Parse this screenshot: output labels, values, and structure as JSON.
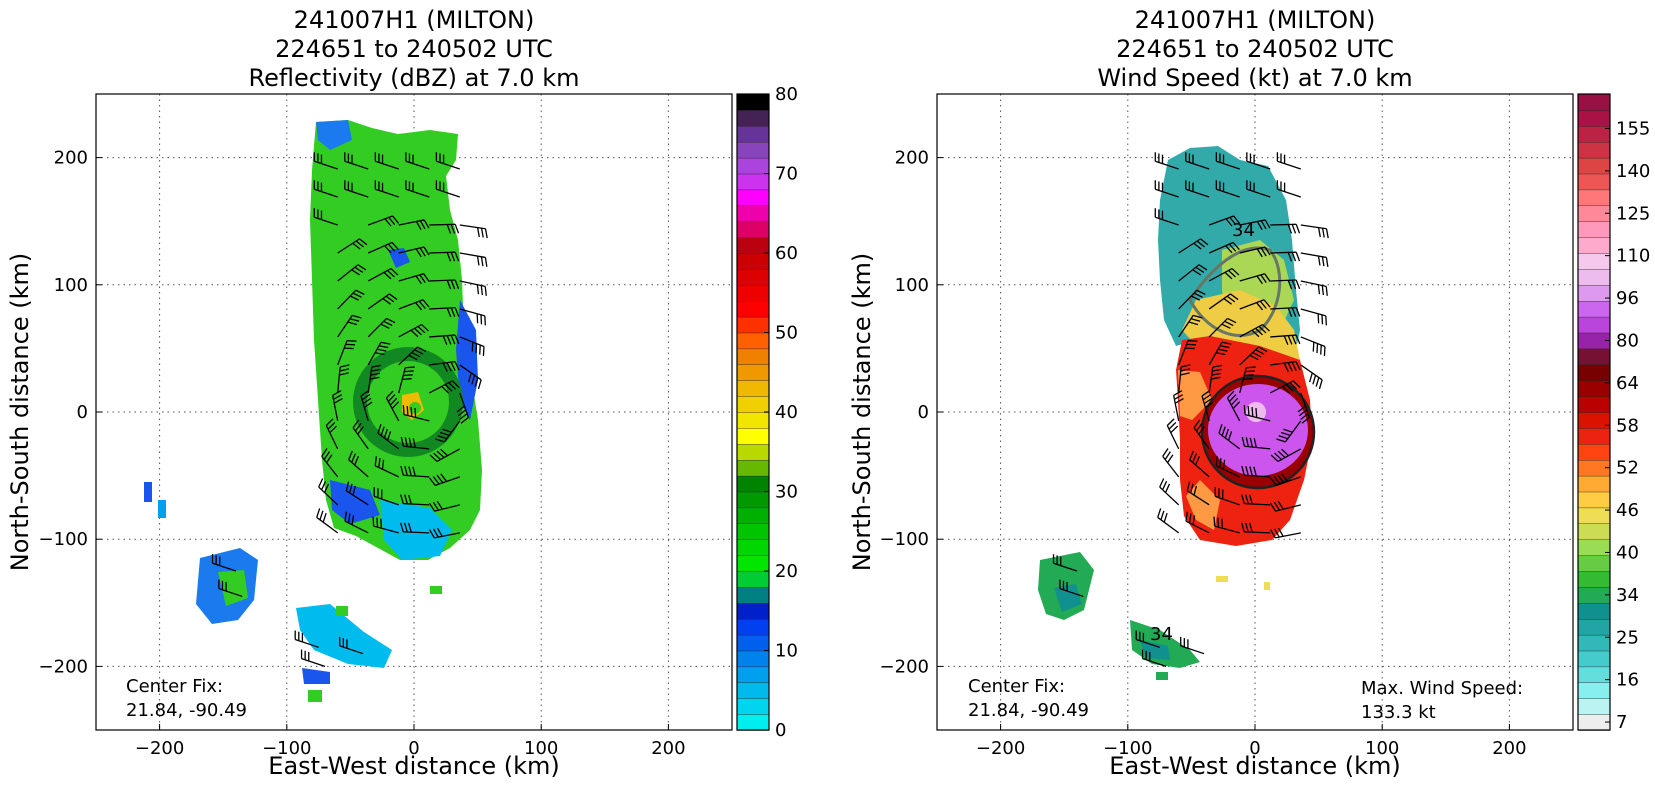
{
  "figure": {
    "panels": [
      {
        "id": "reflectivity",
        "title_lines": [
          "241007H1 (MILTON)",
          "224651 to 240502 UTC",
          "Reflectivity (dBZ) at 7.0 km"
        ],
        "xlabel": "East-West distance (km)",
        "ylabel": "North-South distance (km)",
        "center_fix_label": "Center Fix:",
        "center_fix_value": "21.84, -90.49",
        "max_wind_label": "",
        "max_wind_value": ""
      },
      {
        "id": "wind-speed",
        "title_lines": [
          "241007H1 (MILTON)",
          "224651 to 240502 UTC",
          "Wind Speed (kt) at 7.0 km"
        ],
        "xlabel": "East-West distance (km)",
        "ylabel": "North-South distance (km)",
        "center_fix_label": "Center Fix:",
        "center_fix_value": "21.84, -90.49",
        "max_wind_label": "Max. Wind Speed:",
        "max_wind_value": "133.3 kt"
      }
    ]
  },
  "chart_data": [
    {
      "type": "heatmap",
      "title": "241007H1 (MILTON) 224651 to 240502 UTC Reflectivity (dBZ) at 7.0 km",
      "xlabel": "East-West distance (km)",
      "ylabel": "North-South distance (km)",
      "xlim": [
        -250,
        250
      ],
      "ylim": [
        -250,
        250
      ],
      "xticks": [
        -200,
        -100,
        0,
        100,
        200
      ],
      "yticks": [
        -200,
        -100,
        0,
        100,
        200
      ],
      "grid": true,
      "center_fix": "21.84, -90.49",
      "colorbar": {
        "levels": [
          0,
          80
        ],
        "tick_labels": [
          "0",
          "10",
          "20",
          "30",
          "40",
          "50",
          "60",
          "70",
          "80"
        ],
        "colors": [
          "#00eeee",
          "#00d4ee",
          "#00baee",
          "#00a0ee",
          "#0082ee",
          "#0060ee",
          "#0040ee",
          "#0020cc",
          "#008080",
          "#00cc33",
          "#00e600",
          "#00d600",
          "#00c400",
          "#00b000",
          "#009a00",
          "#008400",
          "#66b800",
          "#b8d800",
          "#ffff00",
          "#f2e600",
          "#f0d000",
          "#f0b800",
          "#f09800",
          "#f08000",
          "#ff6000",
          "#ff3000",
          "#ff0000",
          "#ee0000",
          "#dd0000",
          "#cc0000",
          "#bb0010",
          "#dd0066",
          "#ee00aa",
          "#ff00ff",
          "#cc33ee",
          "#aa44dd",
          "#8844bb",
          "#663399",
          "#442255",
          "#000000"
        ]
      }
    },
    {
      "type": "heatmap",
      "title": "241007H1 (MILTON) 224651 to 240502 UTC Wind Speed (kt) at 7.0 km",
      "xlabel": "East-West distance (km)",
      "ylabel": "North-South distance (km)",
      "xlim": [
        -250,
        250
      ],
      "ylim": [
        -250,
        250
      ],
      "xticks": [
        -200,
        -100,
        0,
        100,
        200
      ],
      "yticks": [
        -200,
        -100,
        0,
        100,
        200
      ],
      "grid": true,
      "center_fix": "21.84, -90.49",
      "max_wind_speed_kt": 133.3,
      "contour_labels": [
        "34",
        "34"
      ],
      "colorbar": {
        "tick_labels": [
          "7",
          "16",
          "25",
          "34",
          "40",
          "46",
          "52",
          "58",
          "64",
          "80",
          "96",
          "110",
          "125",
          "140",
          "155"
        ],
        "colors": [
          "#eeeeee",
          "#bbf2f2",
          "#88eeee",
          "#66dddd",
          "#44cccc",
          "#33b8b8",
          "#22a4a4",
          "#119090",
          "#22aa55",
          "#33bb33",
          "#66cc44",
          "#99dd55",
          "#ccdd55",
          "#eedd55",
          "#ffcc44",
          "#ffaa33",
          "#ff7722",
          "#ff4411",
          "#ee2211",
          "#dd1100",
          "#bb0000",
          "#990000",
          "#770000",
          "#771133",
          "#9922aa",
          "#bb44dd",
          "#cc66ee",
          "#dd99ee",
          "#eebbee",
          "#f7c8ee",
          "#ffaacc",
          "#ff99bb",
          "#ff8899",
          "#ff7777",
          "#ee5555",
          "#dd4444",
          "#cc3344",
          "#bb2244",
          "#aa1144",
          "#991144"
        ]
      }
    }
  ]
}
